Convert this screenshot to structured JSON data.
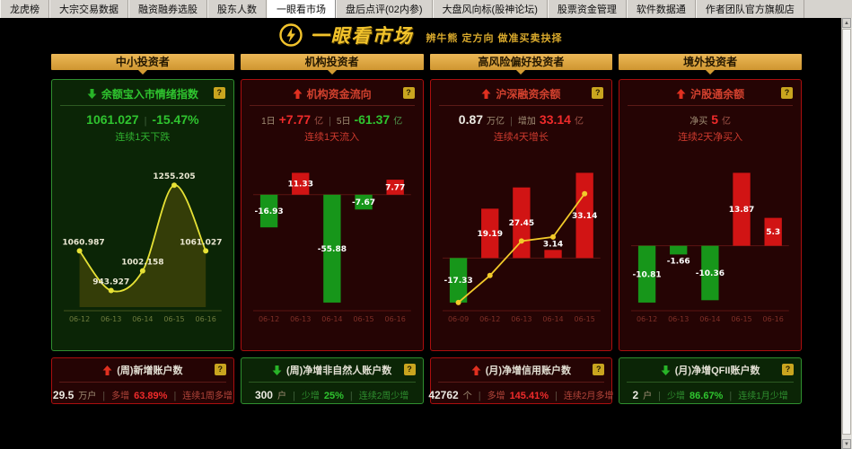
{
  "tab_bar": {
    "items": [
      {
        "label": "龙虎榜",
        "active": false
      },
      {
        "label": "大宗交易数据",
        "active": false
      },
      {
        "label": "融资融券选股",
        "active": false
      },
      {
        "label": "股东人数",
        "active": false
      },
      {
        "label": "一眼看市场",
        "active": true
      },
      {
        "label": "盘后点评(02内参)",
        "active": false
      },
      {
        "label": "大盘风向标(股神论坛)",
        "active": false
      },
      {
        "label": "股票资金管理",
        "active": false
      },
      {
        "label": "软件数据通",
        "active": false
      },
      {
        "label": "作者团队官方旗舰店",
        "active": false
      }
    ]
  },
  "brand": {
    "icon": "lightning-bolt-icon",
    "title": "一眼看市场",
    "tagline": "辨牛熊 定方向 做准买卖抉择",
    "color": "#f2c32c"
  },
  "help": "?",
  "scrollbar": {
    "up": "▲",
    "down": "▼"
  },
  "columns": [
    {
      "header": "中小投资者",
      "main": {
        "title": "余额宝入市情绪指数",
        "trend": "down",
        "value_parts": [
          {
            "t": "1061.027",
            "c": "big green"
          },
          {
            "t": "|",
            "c": "sep"
          },
          {
            "t": "-15.47%",
            "c": "big green"
          }
        ],
        "streak": "连续1天下跌"
      },
      "bottom": {
        "title": "(周)新增账户数",
        "trend": "up",
        "stat_parts": [
          {
            "t": "29.5",
            "c": "num"
          },
          {
            "t": "万户",
            "c": "lbl"
          },
          {
            "t": "|",
            "c": "sep"
          },
          {
            "t": "多增",
            "c": "dim-red"
          },
          {
            "t": "63.89%",
            "c": "pct red"
          },
          {
            "t": "|",
            "c": "sep"
          },
          {
            "t": "连续1周多增",
            "c": "dim-red"
          }
        ]
      }
    },
    {
      "header": "机构投资者",
      "main": {
        "title": "机构资金流向",
        "trend": "up",
        "value_parts": [
          {
            "t": "1日",
            "c": "lbl"
          },
          {
            "t": "+7.77",
            "c": "big red"
          },
          {
            "t": "亿",
            "c": "unit-r"
          },
          {
            "t": "|",
            "c": "sep"
          },
          {
            "t": "5日",
            "c": "lbl"
          },
          {
            "t": "-61.37",
            "c": "big green"
          },
          {
            "t": "亿",
            "c": "unit-g"
          }
        ],
        "streak": "连续1天流入"
      },
      "bottom": {
        "title": "(周)净增非自然人账户数",
        "trend": "down",
        "stat_parts": [
          {
            "t": "300",
            "c": "num"
          },
          {
            "t": "户",
            "c": "lbl"
          },
          {
            "t": "|",
            "c": "sep"
          },
          {
            "t": "少增",
            "c": "dim-green"
          },
          {
            "t": "25%",
            "c": "pct green"
          },
          {
            "t": "|",
            "c": "sep"
          },
          {
            "t": "连续2周少增",
            "c": "dim-green"
          }
        ]
      }
    },
    {
      "header": "高风险偏好投资者",
      "main": {
        "title": "沪深融资余额",
        "trend": "up",
        "value_parts": [
          {
            "t": "0.87",
            "c": "big white"
          },
          {
            "t": "万亿",
            "c": "lbl"
          },
          {
            "t": "|",
            "c": "sep"
          },
          {
            "t": "增加",
            "c": "lbl"
          },
          {
            "t": "33.14",
            "c": "big red"
          },
          {
            "t": "亿",
            "c": "unit-r"
          }
        ],
        "streak": "连续4天增长"
      },
      "bottom": {
        "title": "(月)净增信用账户数",
        "trend": "up",
        "stat_parts": [
          {
            "t": "42762",
            "c": "num"
          },
          {
            "t": "个",
            "c": "lbl"
          },
          {
            "t": "|",
            "c": "sep"
          },
          {
            "t": "多增",
            "c": "dim-red"
          },
          {
            "t": "145.41%",
            "c": "pct red"
          },
          {
            "t": "|",
            "c": "sep"
          },
          {
            "t": "连续2月多增",
            "c": "dim-red"
          }
        ]
      }
    },
    {
      "header": "境外投资者",
      "main": {
        "title": "沪股通余额",
        "trend": "up",
        "value_parts": [
          {
            "t": "净买",
            "c": "lbl"
          },
          {
            "t": "5",
            "c": "big red"
          },
          {
            "t": "亿",
            "c": "unit-r"
          }
        ],
        "streak": "连续2天净买入"
      },
      "bottom": {
        "title": "(月)净增QFII账户数",
        "trend": "down",
        "stat_parts": [
          {
            "t": "2",
            "c": "num"
          },
          {
            "t": "户",
            "c": "lbl"
          },
          {
            "t": "|",
            "c": "sep"
          },
          {
            "t": "少增",
            "c": "dim-green"
          },
          {
            "t": "86.67%",
            "c": "pct green"
          },
          {
            "t": "|",
            "c": "sep"
          },
          {
            "t": "连续1月少增",
            "c": "dim-green"
          }
        ]
      }
    }
  ],
  "chart_data": [
    {
      "type": "area",
      "title": "余额宝入市情绪指数",
      "categories": [
        "06-12",
        "06-13",
        "06-14",
        "06-15",
        "06-16"
      ],
      "values": [
        1060.987,
        943.927,
        1002.158,
        1255.205,
        1061.027
      ],
      "labels": [
        "1060.987",
        "943.927",
        "1002.158",
        "1255.205",
        "1061.027"
      ],
      "ylim": [
        895,
        1330
      ],
      "grid": false,
      "legend": "none",
      "line_color": "#e6e135",
      "area_fill": "#343d08",
      "point_label_color": "#eae7d2",
      "axis_color": "#44551f",
      "tick_color": "#707d3e"
    },
    {
      "type": "bar",
      "title": "机构资金流向",
      "categories": [
        "06-12",
        "06-13",
        "06-14",
        "06-15",
        "06-16"
      ],
      "values": [
        -16.93,
        11.33,
        -55.88,
        -7.67,
        7.77
      ],
      "labels": [
        "-16.93",
        "11.33",
        "-55.88",
        "-7.67",
        "7.77"
      ],
      "grid": false,
      "legend": "none",
      "axis_color": "#5c1512",
      "tick_color": "#803028"
    },
    {
      "type": "bar-line",
      "title": "沪深融资余额",
      "categories": [
        "06-09",
        "06-12",
        "06-13",
        "06-14",
        "06-15"
      ],
      "values": [
        -17.33,
        19.19,
        27.45,
        3.14,
        33.14
      ],
      "labels": [
        "-17.33",
        "19.19",
        "27.45",
        "3.14",
        "33.14"
      ],
      "line_values": [
        -17.3,
        -6.8,
        6.6,
        8.2,
        25.0
      ],
      "grid": false,
      "legend": "none",
      "line_color": "#f2ca2a",
      "axis_color": "#5c1512",
      "tick_color": "#803028"
    },
    {
      "type": "bar",
      "title": "沪股通余额",
      "categories": [
        "06-12",
        "06-13",
        "06-14",
        "06-15",
        "06-16"
      ],
      "values": [
        -10.81,
        -1.66,
        -10.36,
        13.87,
        5.3
      ],
      "labels": [
        "-10.81",
        "-1.66",
        "-10.36",
        "13.87",
        "5.3"
      ],
      "grid": false,
      "legend": "none",
      "axis_color": "#5c1512",
      "tick_color": "#803028"
    }
  ],
  "colors": {
    "bar_red": "#d11414",
    "bar_green": "#17961a",
    "gold_header": "#e2a93e",
    "panel_green_bg": "#0b2506",
    "panel_green_border": "#2f8f2f",
    "panel_red_bg": "#250404",
    "panel_red_border": "#aa0e0e",
    "value_red": "#ef2b2b",
    "value_green": "#2fc42f",
    "bar_label": "#ffffff"
  }
}
